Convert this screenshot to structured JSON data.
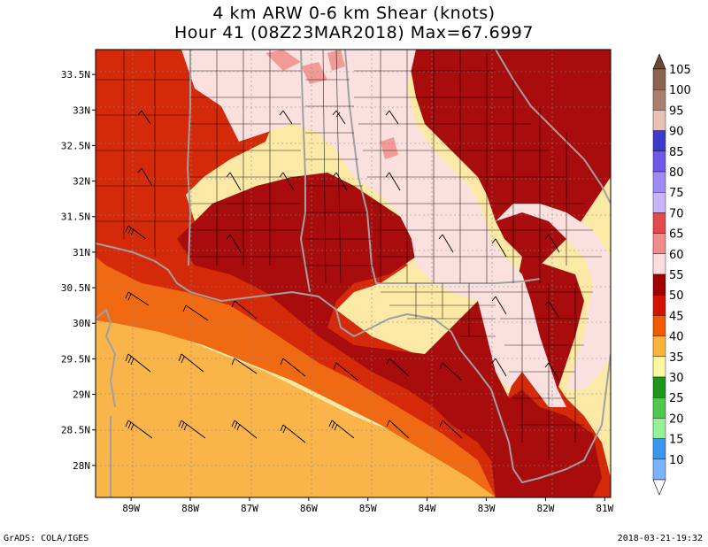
{
  "title_line1": "4 km ARW 0-6 km Shear (knots)",
  "title_line2": "Hour 41 (08Z23MAR2018) Max=67.6997",
  "footer_left": "GrADS: COLA/IGES",
  "footer_right": "2018-03-21-19:32",
  "map": {
    "lon_range": [
      -89.6,
      -80.9
    ],
    "lat_range": [
      27.55,
      33.85
    ],
    "lat_ticks": [
      {
        "value": 33.5,
        "label": "33.5N"
      },
      {
        "value": 33,
        "label": "33N"
      },
      {
        "value": 32.5,
        "label": "32.5N"
      },
      {
        "value": 32,
        "label": "32N"
      },
      {
        "value": 31.5,
        "label": "31.5N"
      },
      {
        "value": 31,
        "label": "31N"
      },
      {
        "value": 30.5,
        "label": "30.5N"
      },
      {
        "value": 30,
        "label": "30N"
      },
      {
        "value": 29.5,
        "label": "29.5N"
      },
      {
        "value": 29,
        "label": "29N"
      },
      {
        "value": 28.5,
        "label": "28.5N"
      },
      {
        "value": 28,
        "label": "28N"
      }
    ],
    "lon_ticks": [
      {
        "value": -89,
        "label": "89W"
      },
      {
        "value": -88,
        "label": "88W"
      },
      {
        "value": -87,
        "label": "87W"
      },
      {
        "value": -86,
        "label": "86W"
      },
      {
        "value": -85,
        "label": "85W"
      },
      {
        "value": -84,
        "label": "84W"
      },
      {
        "value": -83,
        "label": "83W"
      },
      {
        "value": -82,
        "label": "82W"
      },
      {
        "value": -81,
        "label": "81W"
      }
    ]
  },
  "colorbar": {
    "levels": [
      {
        "label": "105",
        "color": "#8c6452"
      },
      {
        "label": "100",
        "color": "#a9806d"
      },
      {
        "label": "95",
        "color": "#e6c1b4"
      },
      {
        "label": "90",
        "color": "#3c3cc8"
      },
      {
        "label": "85",
        "color": "#6e5ae6"
      },
      {
        "label": "80",
        "color": "#a08cf0"
      },
      {
        "label": "75",
        "color": "#c8b4ff"
      },
      {
        "label": "70",
        "color": "#e14b4b"
      },
      {
        "label": "65",
        "color": "#f08c8c"
      },
      {
        "label": "60",
        "color": "#fadcdc"
      },
      {
        "label": "55",
        "color": "#a00000"
      },
      {
        "label": "50",
        "color": "#d21400"
      },
      {
        "label": "45",
        "color": "#f05a00"
      },
      {
        "label": "40",
        "color": "#fab43c"
      },
      {
        "label": "35",
        "color": "#fff5a0"
      },
      {
        "label": "30",
        "color": "#1e961e"
      },
      {
        "label": "25",
        "color": "#50c850"
      },
      {
        "label": "20",
        "color": "#96f096"
      },
      {
        "label": "15",
        "color": "#3c96f0"
      },
      {
        "label": "10",
        "color": "#78b4ff"
      }
    ],
    "top_arrow_color": "#6e4632",
    "bottom_arrow_color": "#ffffff"
  },
  "colors": {
    "shear_40_45": "#fbe9a5",
    "shear_45_50": "#f9b44a",
    "shear_50_55": "#f06a14",
    "shear_55_60": "#d42a0a",
    "shear_60_65": "#a80c0c",
    "shear_65_70": "#fbe0e0",
    "shear_70_75": "#f29a96",
    "boundary": "#a0a0a0",
    "county": "#000000"
  }
}
